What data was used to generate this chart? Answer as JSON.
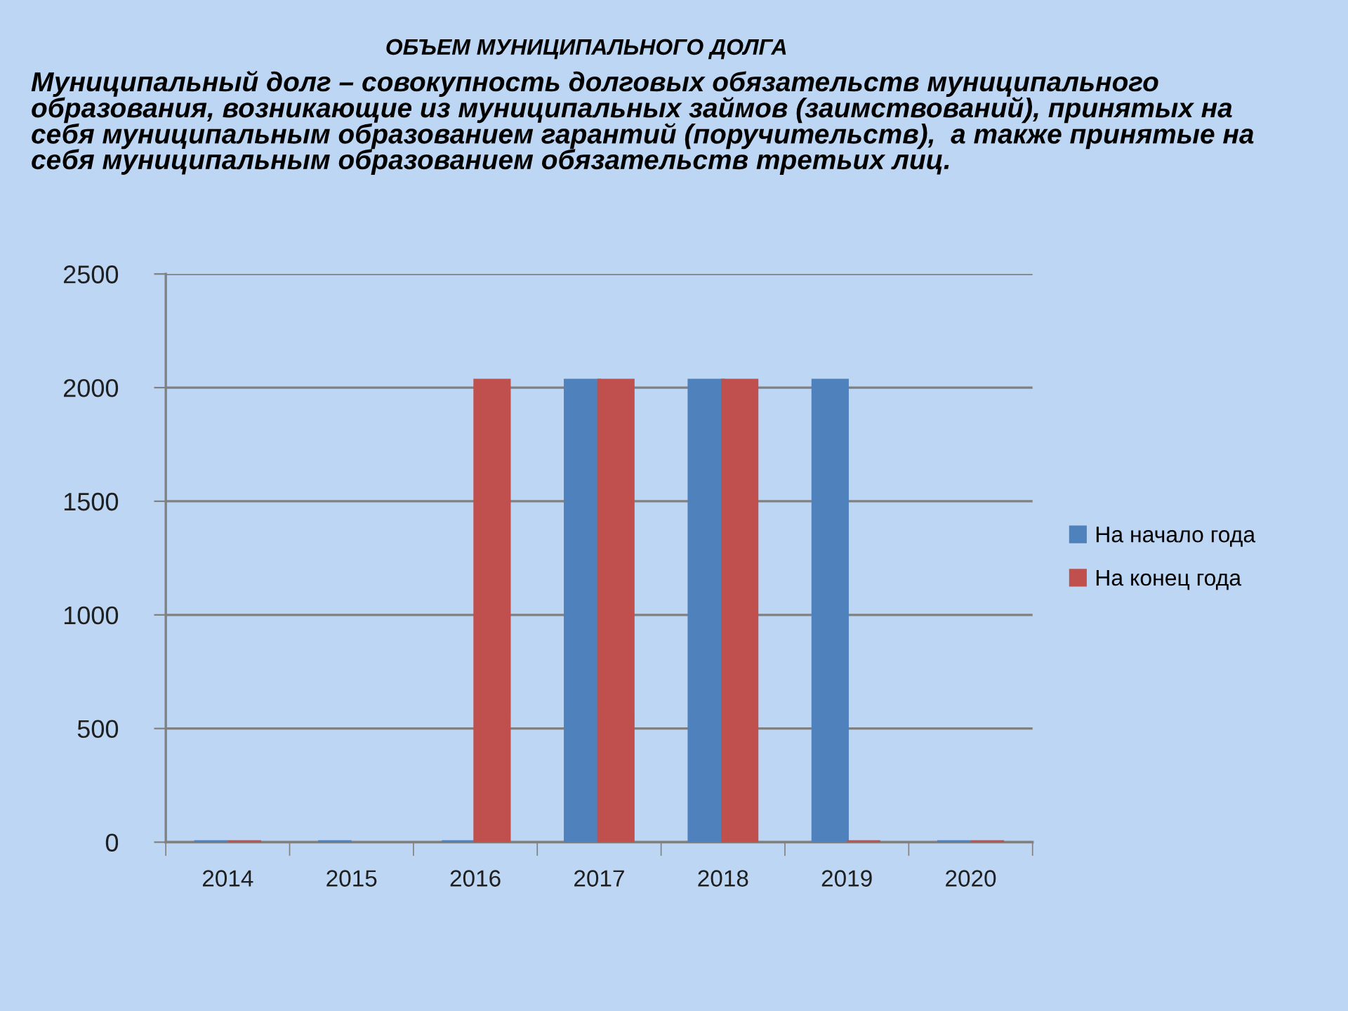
{
  "chart_data": {
    "type": "bar",
    "title": "ОБЪЕМ МУНИЦИПАЛЬНОГО ДОЛГА",
    "subtitle": "Муниципальный долг – совокупность долговых обязательств муниципального образования, возникающие из муниципальных займов (заимствований), принятых на себя муниципальным образованием гарантий (поручительств),  а также принятые на себя муниципальным образованием обязательств третьих лиц.",
    "categories": [
      "2014",
      "2015",
      "2016",
      "2017",
      "2018",
      "2019",
      "2020"
    ],
    "series": [
      {
        "name": "На начало года",
        "color": "#4f81bd",
        "values": [
          0,
          0,
          0,
          2030,
          2030,
          2030,
          0
        ]
      },
      {
        "name": "На конец года",
        "color": "#c0504d",
        "values": [
          0,
          null,
          2030,
          2030,
          2030,
          0,
          0
        ]
      }
    ],
    "ylim": [
      0,
      2500
    ],
    "yticks": [
      0,
      500,
      1000,
      1500,
      2000,
      2500
    ],
    "grid": "y",
    "legend": "right"
  }
}
